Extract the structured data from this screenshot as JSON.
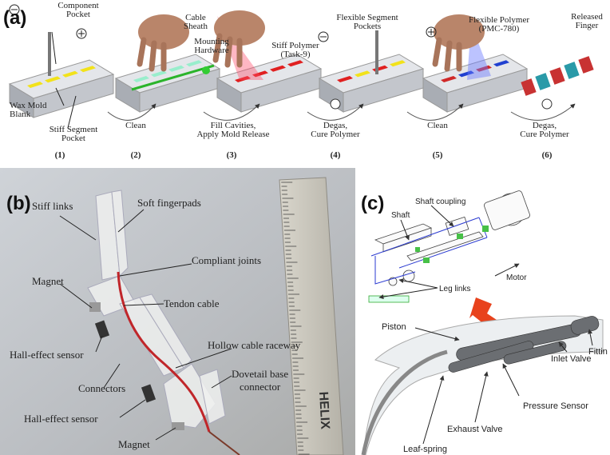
{
  "panel_a": {
    "label": "(a)",
    "annotations": {
      "component_pocket": [
        "Component",
        "Pocket"
      ],
      "cable_sheath": [
        "Cable",
        "Sheath"
      ],
      "mounting_hardware": [
        "Mounting",
        "Hardware"
      ],
      "stiff_polymer": [
        "Stiff Polymer",
        "(Task-9)"
      ],
      "flexible_segment_pockets": [
        "Flexible Segment",
        "Pockets"
      ],
      "flexible_polymer": [
        "Flexible Polymer",
        "(PMC-780)"
      ],
      "released_finger": [
        "Released",
        "Finger"
      ],
      "wax_mold_blank": [
        "Wax Mold",
        "Blank"
      ],
      "stiff_segment_pocket": [
        "Stiff Segment",
        "Pocket"
      ]
    },
    "transitions": [
      [
        "Clean"
      ],
      [
        "Fill Cavities,",
        "Apply Mold Release"
      ],
      [
        "Degas,",
        "Cure Polymer"
      ],
      [
        "Clean"
      ],
      [
        "Degas,",
        "Cure Polymer"
      ]
    ],
    "steps": [
      "(1)",
      "(2)",
      "(3)",
      "(4)",
      "(5)",
      "(6)"
    ]
  },
  "panel_b": {
    "label": "(b)",
    "annotations": [
      "Stiff links",
      "Soft fingerpads",
      "Compliant joints",
      "Magnet",
      "Tendon cable",
      "Hall-effect sensor",
      "Hollow cable raceway",
      "Connectors",
      "Hall-effect sensor",
      "Magnet"
    ],
    "dovetail": [
      "Dovetail base",
      "connector"
    ],
    "ruler_brand": "HELIX"
  },
  "panel_c": {
    "label": "(c)",
    "annotations": [
      "Shaft coupling",
      "Shaft",
      "Motor",
      "Leg links",
      "Piston",
      "Fittin",
      "Inlet Valve",
      "Pressure Sensor",
      "Exhaust Valve",
      "Leaf-spring"
    ]
  }
}
